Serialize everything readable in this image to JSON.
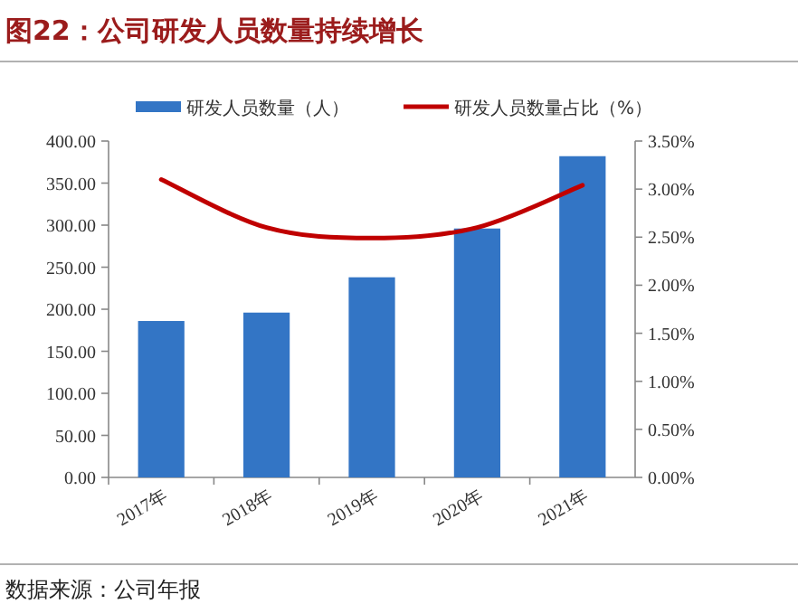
{
  "chart_data": {
    "type": "bar",
    "title": "图22：公司研发人员数量持续增长",
    "categories": [
      "2017年",
      "2018年",
      "2019年",
      "2020年",
      "2021年"
    ],
    "series": [
      {
        "name": "研发人员数量（人）",
        "color": "#3375c5",
        "values": [
          186,
          196,
          238,
          296,
          382
        ]
      },
      {
        "name": "研发人员数量占比（%）",
        "type": "line",
        "axis": "y2",
        "color": "#c00000",
        "values": [
          3.1,
          2.6,
          2.49,
          2.6,
          3.04
        ]
      }
    ],
    "ylim": [
      0,
      400
    ],
    "yticks": [
      {
        "value": 0,
        "label": "0.00"
      },
      {
        "value": 50,
        "label": "50.00"
      },
      {
        "value": 100,
        "label": "100.00"
      },
      {
        "value": 150,
        "label": "150.00"
      },
      {
        "value": 200,
        "label": "200.00"
      },
      {
        "value": 250,
        "label": "250.00"
      },
      {
        "value": 300,
        "label": "300.00"
      },
      {
        "value": 350,
        "label": "350.00"
      },
      {
        "value": 400,
        "label": "400.00"
      }
    ],
    "y2lim": [
      0,
      3.5
    ],
    "y2ticks": [
      {
        "value": 0,
        "label": "0.00%"
      },
      {
        "value": 0.5,
        "label": "0.50%"
      },
      {
        "value": 1,
        "label": "1.00%"
      },
      {
        "value": 1.5,
        "label": "1.50%"
      },
      {
        "value": 2,
        "label": "2.00%"
      },
      {
        "value": 2.5,
        "label": "2.50%"
      },
      {
        "value": 3,
        "label": "3.00%"
      },
      {
        "value": 3.5,
        "label": "3.50%"
      }
    ],
    "legend": "top",
    "annotations": [
      "数据来源：公司年报"
    ]
  }
}
